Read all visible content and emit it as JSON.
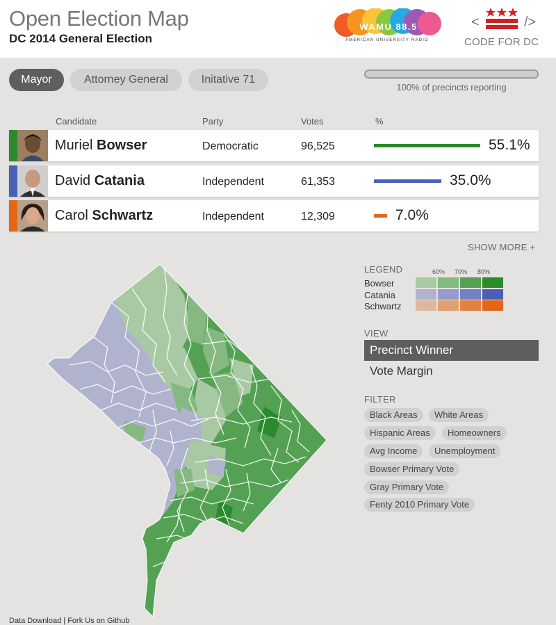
{
  "header": {
    "title": "Open Election Map",
    "subtitle": "DC 2014 General Election",
    "station_logo_text": "WAMU 88.5",
    "station_tagline": "AMERICAN UNIVERSITY RADIO",
    "partner_text": "CODE FOR DC"
  },
  "tabs": [
    {
      "label": "Mayor",
      "active": true
    },
    {
      "label": "Attorney General",
      "active": false
    },
    {
      "label": "Initative 71",
      "active": false
    }
  ],
  "reporting": {
    "text": "100% of precincts reporting",
    "fraction": 1.0
  },
  "table": {
    "headers": [
      "Candidate",
      "Party",
      "Votes",
      "%"
    ],
    "rows": [
      {
        "first": "Muriel",
        "last": "Bowser",
        "party": "Democratic",
        "votes": "96,525",
        "pct": "55.1%",
        "share": 0.551,
        "color": "#2b8a2b"
      },
      {
        "first": "David",
        "last": "Catania",
        "party": "Independent",
        "votes": "61,353",
        "pct": "35.0%",
        "share": 0.35,
        "color": "#4a5fb8"
      },
      {
        "first": "Carol",
        "last": "Schwartz",
        "party": "Independent",
        "votes": "12,309",
        "pct": "7.0%",
        "share": 0.07,
        "color": "#e36615"
      }
    ]
  },
  "show_more": "SHOW MORE +",
  "legend": {
    "label": "LEGEND",
    "thresholds": [
      "60%",
      "70%",
      "80%"
    ],
    "candidates": [
      {
        "name": "Bowser",
        "colors": [
          "#a9c9a4",
          "#86b882",
          "#54a154",
          "#2b8a2b"
        ]
      },
      {
        "name": "Catania",
        "colors": [
          "#b0b3cd",
          "#959bcd",
          "#7280c6",
          "#4a5fb8"
        ]
      },
      {
        "name": "Schwartz",
        "colors": [
          "#deb79f",
          "#e0a070",
          "#e18243",
          "#e36615"
        ]
      }
    ]
  },
  "view": {
    "label": "VIEW",
    "options": [
      {
        "label": "Precinct Winner",
        "active": true
      },
      {
        "label": "Vote Margin",
        "active": false
      }
    ]
  },
  "filter": {
    "label": "FILTER",
    "options": [
      "Black Areas",
      "White Areas",
      "Hispanic Areas",
      "Homeowners",
      "Avg Income",
      "Unemployment",
      "Bowser Primary Vote",
      "Gray Primary Vote",
      "Fenty 2010 Primary Vote"
    ]
  },
  "footer": {
    "download": "Data Download",
    "separator": "|",
    "github": "Fork Us on Github"
  },
  "map": {
    "region": "Washington, DC precincts",
    "winner_color_light": "#a9c9a4",
    "winner_color_dark": "#54a154",
    "catania_color": "#b0b3cd"
  }
}
